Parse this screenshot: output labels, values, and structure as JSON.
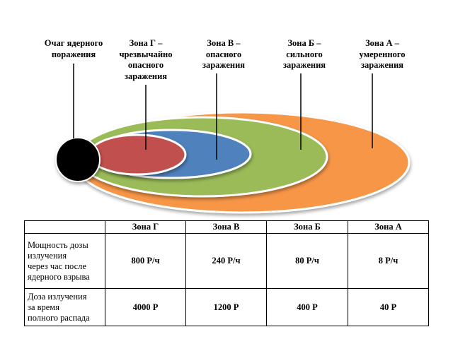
{
  "diagram": {
    "labels": {
      "center": [
        "Очаг ядерного",
        "поражения"
      ],
      "zone_g": [
        "Зона Г –",
        "чрезвычайно",
        "опасного",
        "заражения"
      ],
      "zone_v": [
        "Зона В –",
        "опасного",
        "заражения"
      ],
      "zone_b": [
        "Зона Б –",
        "сильного",
        "заражения"
      ],
      "zone_a": [
        "Зона А –",
        "умеренного",
        "заражения"
      ]
    },
    "colors": {
      "zone_a": "#f79646",
      "zone_b": "#9bbb59",
      "zone_v": "#4f81bd",
      "zone_g": "#c0504d",
      "epicenter": "#000000",
      "outline": "#ffffff"
    }
  },
  "table": {
    "headers": [
      "",
      "Зона Г",
      "Зона В",
      "Зона Б",
      "Зона А"
    ],
    "rows": [
      {
        "label": [
          "Мощность дозы",
          "излучения",
          "через час после",
          "ядерного взрыва"
        ],
        "values": [
          "800 Р/ч",
          "240 Р/ч",
          "80 Р/ч",
          "8 Р/ч"
        ]
      },
      {
        "label": [
          "Доза излучения",
          "за время",
          "полного распада"
        ],
        "values": [
          "4000 Р",
          "1200 Р",
          "400 Р",
          "40 Р"
        ]
      }
    ]
  }
}
